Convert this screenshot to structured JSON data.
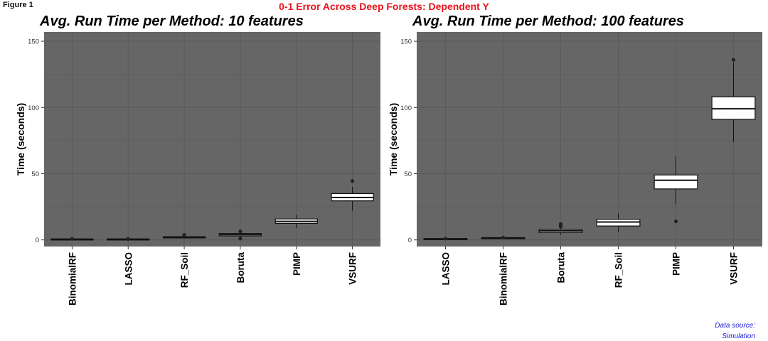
{
  "figure_label": "Figure 1",
  "suptitle": "0-1 Error Across Deep Forests: Dependent Y",
  "source_lines": [
    "Data source:",
    "Simulation"
  ],
  "colors": {
    "panel_background": "#666666",
    "grid": "#5a5a5a",
    "box_fill": "#ffffff",
    "box_stroke": "#111111",
    "suptitle": "#e8141c",
    "source_text": "#1a1adc"
  },
  "chart_data": [
    {
      "type": "box",
      "title": "Avg. Run Time per Method: 10 features",
      "ylabel": "Time (seconds)",
      "xlabel": "",
      "ylim": [
        -5,
        157
      ],
      "yticks": [
        0,
        50,
        100,
        150
      ],
      "grid": true,
      "categories": [
        "BinomialRF",
        "LASSO",
        "RF_Soil",
        "Boruta",
        "PIMP",
        "VSURF"
      ],
      "boxes": [
        {
          "category": "BinomialRF",
          "min": 0.1,
          "q1": 0.3,
          "median": 0.5,
          "q3": 0.7,
          "max": 0.9,
          "outliers": [
            0.8
          ]
        },
        {
          "category": "LASSO",
          "min": 0.1,
          "q1": 0.3,
          "median": 0.5,
          "q3": 0.7,
          "max": 0.9,
          "outliers": [
            0.7
          ]
        },
        {
          "category": "RF_Soil",
          "min": 1.0,
          "q1": 1.5,
          "median": 2.0,
          "q3": 2.4,
          "max": 3.0,
          "outliers": [
            3.8
          ]
        },
        {
          "category": "Boruta",
          "min": 2.0,
          "q1": 3.0,
          "median": 4.0,
          "q3": 4.8,
          "max": 5.5,
          "outliers": [
            6.5,
            1.0
          ]
        },
        {
          "category": "PIMP",
          "min": 9,
          "q1": 12.5,
          "median": 14,
          "q3": 15.8,
          "max": 19,
          "outliers": []
        },
        {
          "category": "VSURF",
          "min": 22,
          "q1": 29.5,
          "median": 32,
          "q3": 35,
          "max": 40,
          "outliers": [
            44.5
          ]
        }
      ]
    },
    {
      "type": "box",
      "title": "Avg. Run Time per Method: 100 features",
      "ylabel": "Time (seconds)",
      "xlabel": "",
      "ylim": [
        -5,
        157
      ],
      "yticks": [
        0,
        50,
        100,
        150
      ],
      "grid": true,
      "categories": [
        "LASSO",
        "BinomialRF",
        "Boruta",
        "RF_Soil",
        "PIMP",
        "VSURF"
      ],
      "boxes": [
        {
          "category": "LASSO",
          "min": 0.2,
          "q1": 0.5,
          "median": 0.7,
          "q3": 1.0,
          "max": 1.3,
          "outliers": [
            1.0
          ]
        },
        {
          "category": "BinomialRF",
          "min": 0.8,
          "q1": 1.1,
          "median": 1.4,
          "q3": 1.7,
          "max": 2.0,
          "outliers": [
            1.8
          ]
        },
        {
          "category": "Boruta",
          "min": 4,
          "q1": 5.5,
          "median": 6.8,
          "q3": 7.8,
          "max": 9,
          "outliers": [
            10.0,
            11.0,
            12.0
          ]
        },
        {
          "category": "RF_Soil",
          "min": 6,
          "q1": 10.5,
          "median": 13.5,
          "q3": 15.5,
          "max": 20,
          "outliers": []
        },
        {
          "category": "PIMP",
          "min": 27,
          "q1": 38.5,
          "median": 45,
          "q3": 49,
          "max": 63,
          "outliers": [
            14
          ]
        },
        {
          "category": "VSURF",
          "min": 74,
          "q1": 91,
          "median": 99,
          "q3": 108,
          "max": 134,
          "outliers": [
            136
          ]
        }
      ]
    }
  ]
}
